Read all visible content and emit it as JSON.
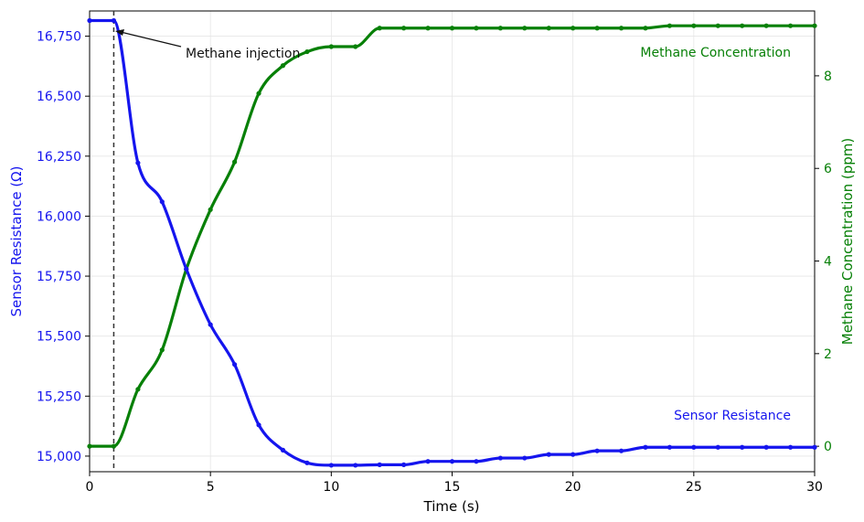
{
  "chart_data": {
    "type": "line",
    "xlabel": "Time (s)",
    "ylabel_left": "Sensor Resistance (Ω)",
    "ylabel_right": "Methane Concentration (ppm)",
    "xlim": [
      0,
      30
    ],
    "ylim_left": [
      14935,
      16855
    ],
    "ylim_right": [
      -0.55,
      9.4
    ],
    "x_ticks": [
      0,
      5,
      10,
      15,
      20,
      25,
      30
    ],
    "x_tick_labels": [
      "0",
      "5",
      "10",
      "15",
      "20",
      "25",
      "30"
    ],
    "y_left_ticks": [
      15000,
      15250,
      15500,
      15750,
      16000,
      16250,
      16500,
      16750
    ],
    "y_left_tick_labels": [
      "15,000",
      "15,250",
      "15,500",
      "15,750",
      "16,000",
      "16,250",
      "16,500",
      "16,750"
    ],
    "y_right_ticks": [
      0,
      2,
      4,
      6,
      8
    ],
    "y_right_tick_labels": [
      "0",
      "2",
      "4",
      "6",
      "8"
    ],
    "grid": true,
    "series": [
      {
        "name": "Sensor Resistance",
        "axis": "left",
        "color": "#1515ee",
        "x": [
          0,
          1,
          2,
          3,
          4,
          5,
          6,
          7,
          8,
          9,
          10,
          11,
          12,
          13,
          14,
          15,
          16,
          17,
          18,
          19,
          20,
          21,
          22,
          23,
          24,
          25,
          26,
          27,
          28,
          29,
          30
        ],
        "values": [
          16815,
          16815,
          16222,
          16060,
          15780,
          15548,
          15382,
          15130,
          15025,
          14972,
          14962,
          14962,
          14964,
          14964,
          14978,
          14978,
          14978,
          14992,
          14992,
          15007,
          15007,
          15022,
          15022,
          15037,
          15037,
          15037,
          15037,
          15037,
          15037,
          15037,
          15037
        ]
      },
      {
        "name": "Methane Concentration",
        "axis": "right",
        "color": "#078007",
        "x": [
          0,
          1,
          2,
          3,
          4,
          5,
          6,
          7,
          8,
          9,
          10,
          11,
          12,
          13,
          14,
          15,
          16,
          17,
          18,
          19,
          20,
          21,
          22,
          23,
          24,
          25,
          26,
          27,
          28,
          29,
          30
        ],
        "values": [
          0,
          0,
          1.23,
          2.08,
          3.82,
          5.11,
          6.14,
          7.62,
          8.22,
          8.52,
          8.63,
          8.63,
          9.03,
          9.03,
          9.03,
          9.03,
          9.03,
          9.03,
          9.03,
          9.03,
          9.03,
          9.03,
          9.03,
          9.03,
          9.08,
          9.08,
          9.08,
          9.08,
          9.08,
          9.08,
          9.08
        ]
      }
    ],
    "annotations": [
      {
        "text": "Methane injection",
        "x": 1,
        "y_left": 16815,
        "type": "vertical-dashed-line-with-arrow"
      }
    ],
    "legend": "series names written inline near the right end of each line"
  }
}
